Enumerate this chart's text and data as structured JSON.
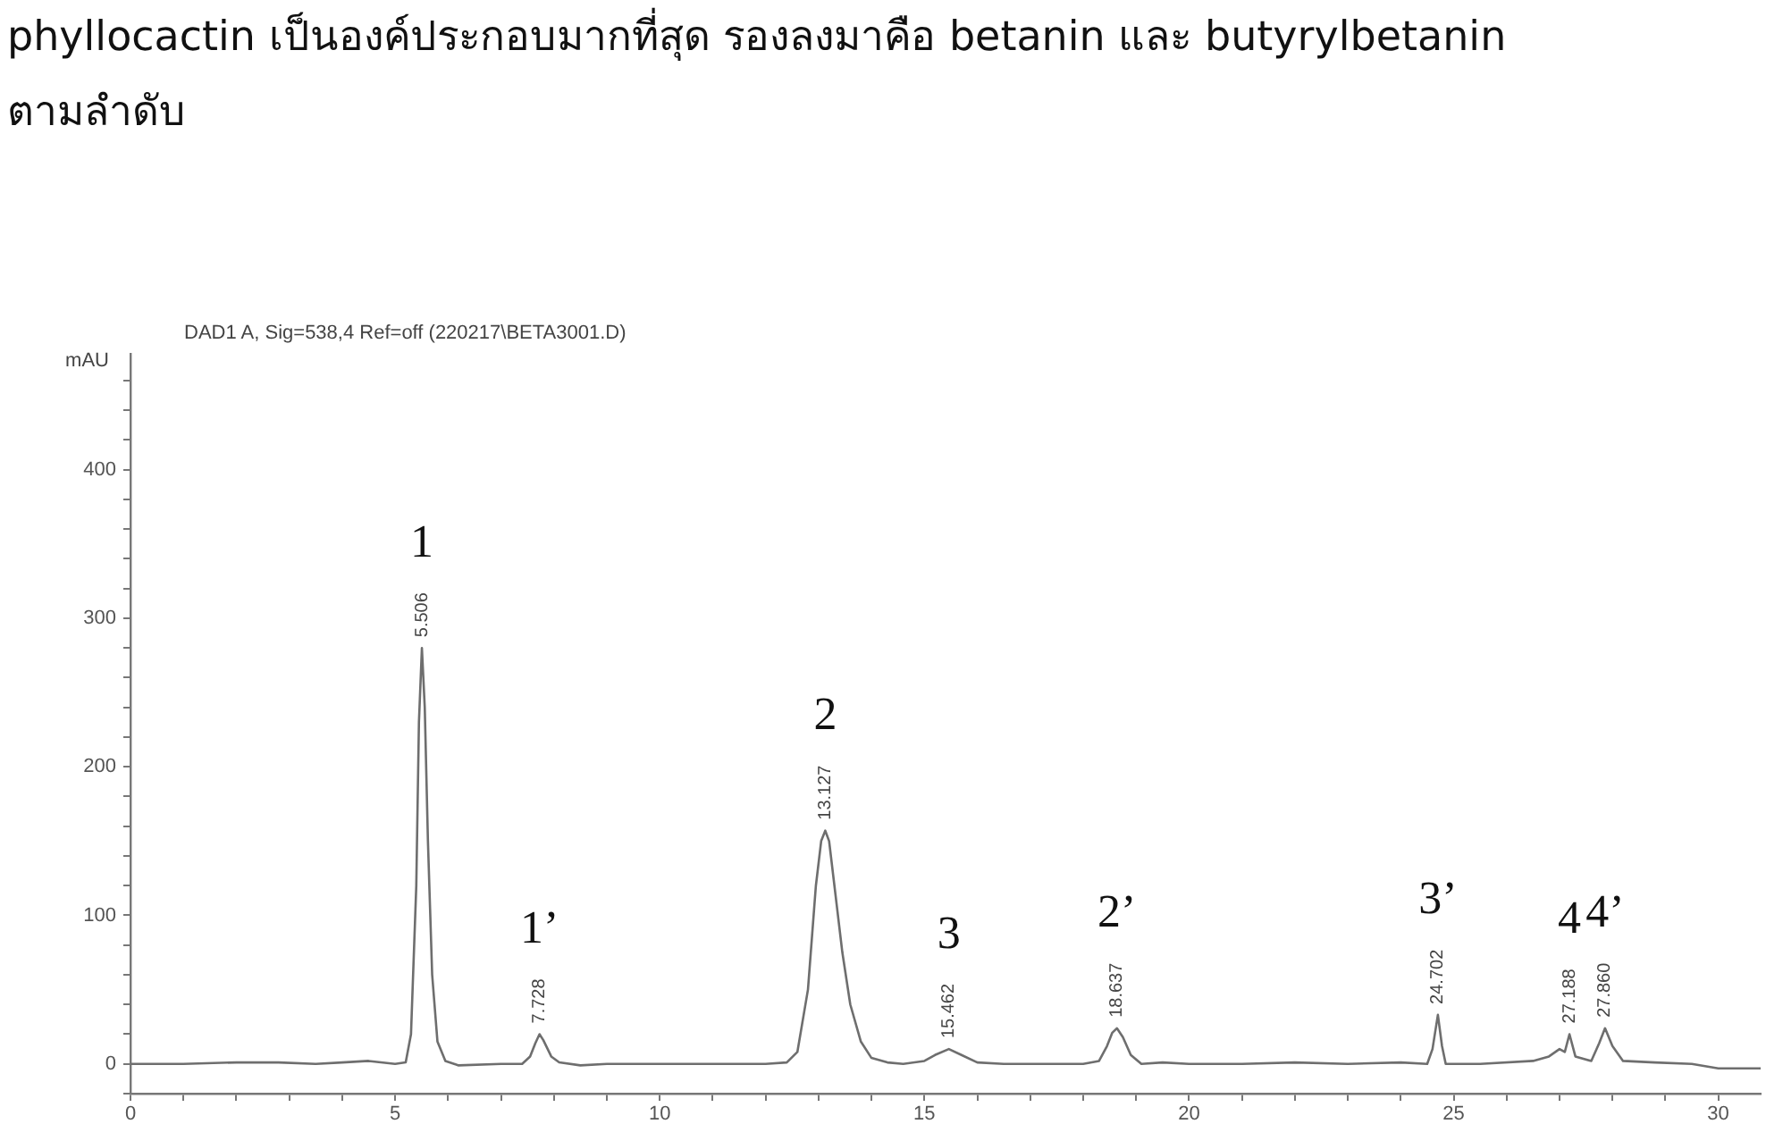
{
  "chart_data": {
    "type": "line",
    "title": "DAD1 A, Sig=538,4 Ref=off (220217\\BETA3001.D)",
    "ylabel": "mAU",
    "annotations": [
      "phyllocactin เป็นองค์ประกอบมากที่สุด รองลงมาคือ betanin และ butyrylbetanin",
      "ตามลำดับ",
      {
        "text": "5.506",
        "x": 5.506,
        "y": 280
      },
      {
        "text": "1",
        "x": 5.506,
        "y": 280
      },
      {
        "text": "7.728",
        "x": 7.728,
        "y": 20
      },
      {
        "text": "1’",
        "x": 7.728,
        "y": 20
      },
      {
        "text": "13.127",
        "x": 13.127,
        "y": 157
      },
      {
        "text": "2",
        "x": 13.127,
        "y": 157
      },
      {
        "text": "15.462",
        "x": 15.462,
        "y": 10
      },
      {
        "text": "3",
        "x": 15.462,
        "y": 10
      },
      {
        "text": "18.637",
        "x": 18.637,
        "y": 24
      },
      {
        "text": "2’",
        "x": 18.637,
        "y": 24
      },
      {
        "text": "24.702",
        "x": 24.702,
        "y": 33
      },
      {
        "text": "3’",
        "x": 24.702,
        "y": 33
      },
      {
        "text": "27.188",
        "x": 27.188,
        "y": 20
      },
      {
        "text": "4",
        "x": 27.188,
        "y": 20
      },
      {
        "text": "27.860",
        "x": 27.86,
        "y": 24
      },
      {
        "text": "4’",
        "x": 27.86,
        "y": 24
      }
    ],
    "xlim": [
      0,
      30.8
    ],
    "xticks": [
      0,
      {
        "value": 1,
        "label": null
      },
      {
        "value": 2,
        "label": null
      },
      {
        "value": 3,
        "label": null
      },
      {
        "value": 4,
        "label": null
      },
      5,
      {
        "value": 6,
        "label": null
      },
      {
        "value": 7,
        "label": null
      },
      {
        "value": 8,
        "label": null
      },
      {
        "value": 9,
        "label": null
      },
      10,
      {
        "value": 11,
        "label": null
      },
      {
        "value": 12,
        "label": null
      },
      {
        "value": 13,
        "label": null
      },
      {
        "value": 14,
        "label": null
      },
      15,
      {
        "value": 16,
        "label": null
      },
      {
        "value": 17,
        "label": null
      },
      {
        "value": 18,
        "label": null
      },
      {
        "value": 19,
        "label": null
      },
      20,
      {
        "value": 21,
        "label": null
      },
      {
        "value": 22,
        "label": null
      },
      {
        "value": 23,
        "label": null
      },
      {
        "value": 24,
        "label": null
      },
      25,
      {
        "value": 26,
        "label": null
      },
      {
        "value": 27,
        "label": null
      },
      {
        "value": 28,
        "label": null
      },
      {
        "value": 29,
        "label": null
      },
      30
    ],
    "ylim": [
      -20,
      478
    ],
    "yticks": [
      {
        "value": -20,
        "label": null
      },
      0,
      {
        "value": 20,
        "label": null
      },
      {
        "value": 40,
        "label": null
      },
      {
        "value": 60,
        "label": null
      },
      {
        "value": 80,
        "label": null
      },
      100,
      {
        "value": 120,
        "label": null
      },
      {
        "value": 140,
        "label": null
      },
      {
        "value": 160,
        "label": null
      },
      {
        "value": 180,
        "label": null
      },
      200,
      {
        "value": 220,
        "label": null
      },
      {
        "value": 240,
        "label": null
      },
      {
        "value": 260,
        "label": null
      },
      {
        "value": 280,
        "label": null
      },
      300,
      {
        "value": 320,
        "label": null
      },
      {
        "value": 340,
        "label": null
      },
      {
        "value": 360,
        "label": null
      },
      {
        "value": 380,
        "label": null
      },
      400,
      {
        "value": 420,
        "label": null
      },
      {
        "value": 440,
        "label": null
      },
      {
        "value": 460,
        "label": null
      }
    ],
    "grid": false,
    "legend": false,
    "marker": "none",
    "line_style": "solid",
    "series": [
      {
        "color": "#6e6e6e",
        "x": [
          0,
          1,
          2,
          2.8,
          3.5,
          4,
          4.5,
          5.0,
          5.2,
          5.3,
          5.4,
          5.45,
          5.506,
          5.56,
          5.62,
          5.7,
          5.8,
          5.95,
          6.2,
          7,
          7.4,
          7.55,
          7.65,
          7.728,
          7.8,
          7.95,
          8.1,
          8.5,
          9,
          10,
          11,
          12,
          12.4,
          12.6,
          12.8,
          12.95,
          13.05,
          13.127,
          13.2,
          13.3,
          13.45,
          13.6,
          13.8,
          14.0,
          14.3,
          14.6,
          15.0,
          15.2,
          15.462,
          15.7,
          16.0,
          16.5,
          18.0,
          18.3,
          18.45,
          18.55,
          18.637,
          18.75,
          18.9,
          19.1,
          19.5,
          20,
          21,
          22,
          23,
          24,
          24.5,
          24.6,
          24.702,
          24.78,
          24.85,
          25.5,
          26.5,
          26.8,
          27.0,
          27.1,
          27.188,
          27.3,
          27.6,
          27.75,
          27.86,
          28.0,
          28.2,
          28.8,
          29.5,
          30.0,
          30.8
        ],
        "values": [
          0,
          0,
          1,
          1,
          0,
          1,
          2,
          0,
          1,
          20,
          120,
          230,
          280,
          240,
          150,
          60,
          15,
          2,
          -1,
          0,
          0,
          5,
          14,
          20,
          16,
          5,
          1,
          -1,
          0,
          0,
          0,
          0,
          1,
          8,
          50,
          120,
          150,
          157,
          150,
          120,
          75,
          40,
          15,
          4,
          1,
          0,
          2,
          6,
          10,
          6,
          1,
          0,
          0,
          2,
          12,
          21,
          24,
          18,
          6,
          0,
          1,
          0,
          0,
          1,
          0,
          1,
          0,
          10,
          33,
          12,
          0,
          0,
          2,
          5,
          10,
          8,
          20,
          5,
          2,
          14,
          24,
          12,
          2,
          1,
          0,
          -3,
          -3
        ]
      }
    ]
  }
}
